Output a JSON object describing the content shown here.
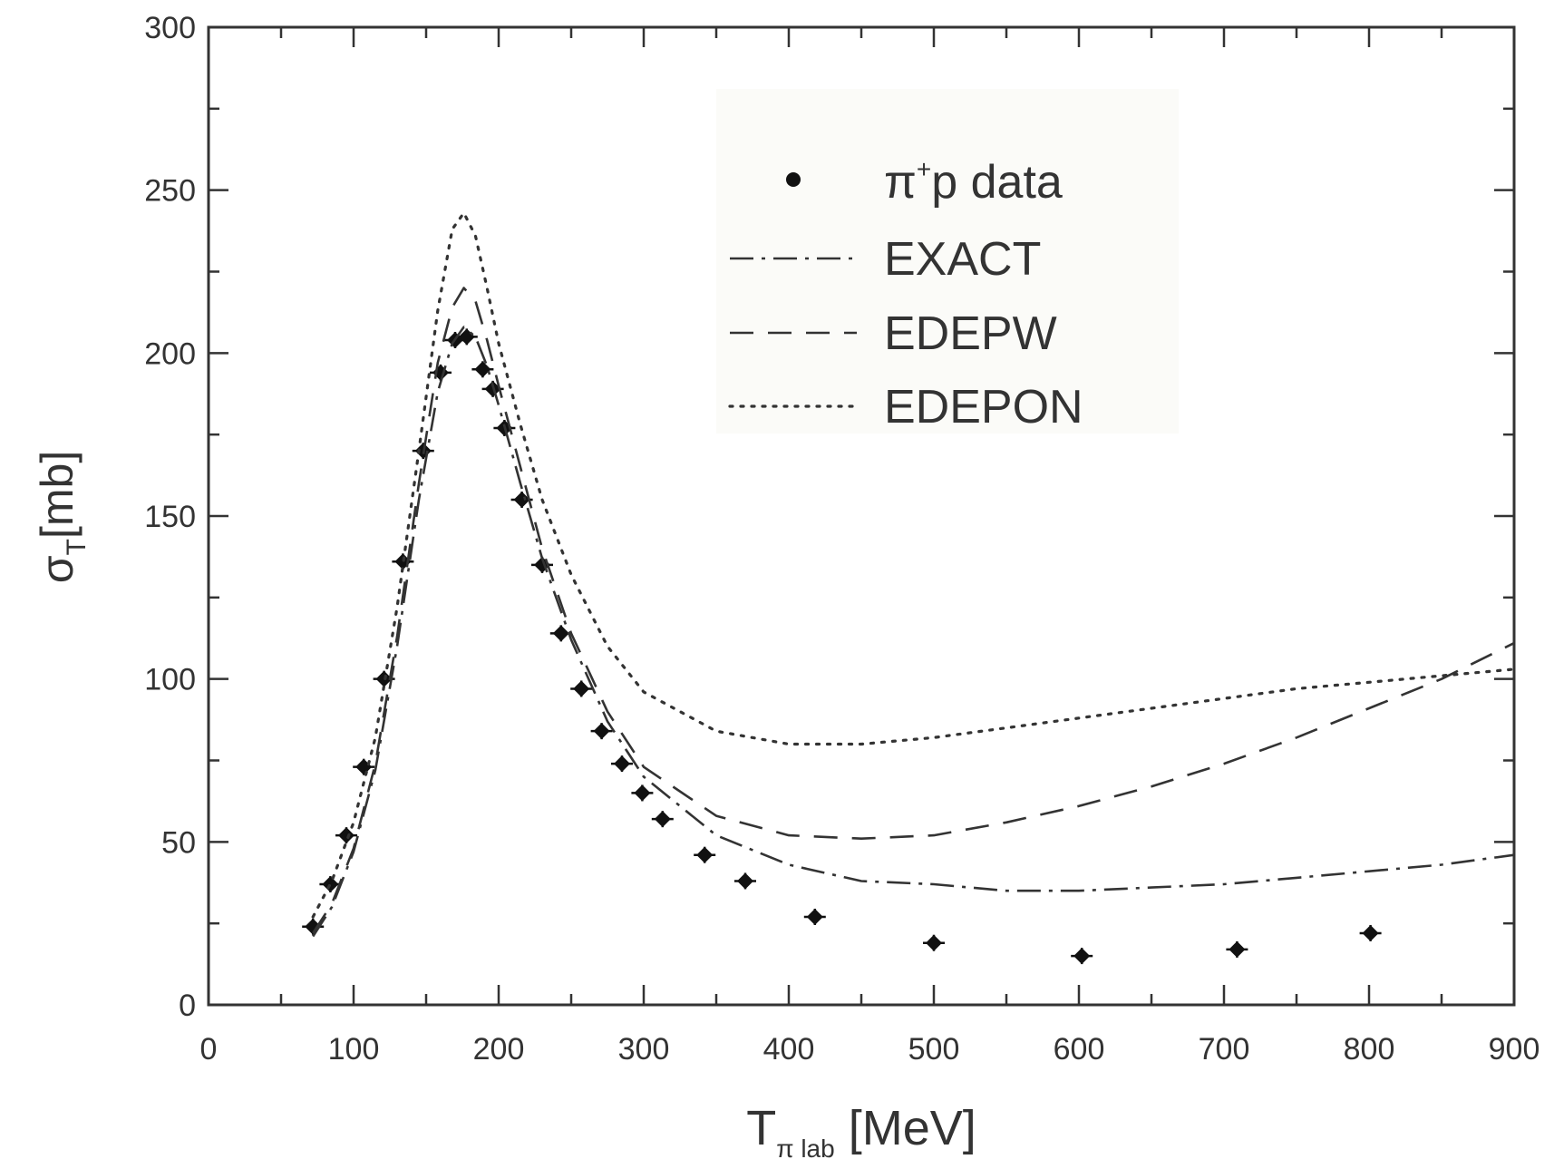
{
  "chart_data": {
    "type": "scatter",
    "title": "",
    "xlabel": {
      "main": "T",
      "sub": "π lab",
      "unit": " [MeV]"
    },
    "ylabel": {
      "main": "σ",
      "sub": "T",
      "unit": "[mb]"
    },
    "xlim": [
      0,
      900
    ],
    "ylim": [
      0,
      300
    ],
    "x_ticks": [
      0,
      100,
      200,
      300,
      400,
      500,
      600,
      700,
      800,
      900
    ],
    "y_ticks": [
      0,
      50,
      100,
      150,
      200,
      250,
      300
    ],
    "x_tick_labels": [
      "0",
      "100",
      "200",
      "300",
      "400",
      "500",
      "600",
      "700",
      "800",
      "900"
    ],
    "y_tick_labels": [
      "0",
      "50",
      "100",
      "150",
      "200",
      "250",
      "300"
    ],
    "x_minor_step": 50,
    "y_minor_step": 25,
    "grid": false,
    "legend_position": "top-right",
    "series": [
      {
        "name": "π⁺p data",
        "legend": {
          "pi": "π",
          "sup": "+",
          "rest": "p data"
        },
        "style": "points",
        "color": "#111111",
        "points": [
          [
            72,
            24
          ],
          [
            84,
            37
          ],
          [
            95,
            52
          ],
          [
            107,
            73
          ],
          [
            121,
            100
          ],
          [
            134,
            136
          ],
          [
            148,
            170
          ],
          [
            160,
            194
          ],
          [
            170,
            204
          ],
          [
            178,
            205
          ],
          [
            189,
            195
          ],
          [
            196,
            189
          ],
          [
            204,
            177
          ],
          [
            216,
            155
          ],
          [
            230,
            135
          ],
          [
            243,
            114
          ],
          [
            257,
            97
          ],
          [
            271,
            84
          ],
          [
            285,
            74
          ],
          [
            299,
            65
          ],
          [
            313,
            57
          ],
          [
            342,
            46
          ],
          [
            370,
            38
          ],
          [
            418,
            27
          ],
          [
            500,
            19
          ],
          [
            602,
            15
          ],
          [
            709,
            17
          ],
          [
            801,
            22
          ]
        ]
      },
      {
        "name": "EXACT",
        "style": "dashdot",
        "color": "#333333",
        "points": [
          [
            72,
            21
          ],
          [
            85,
            30
          ],
          [
            100,
            47
          ],
          [
            115,
            72
          ],
          [
            130,
            110
          ],
          [
            145,
            155
          ],
          [
            158,
            188
          ],
          [
            168,
            203
          ],
          [
            176,
            208
          ],
          [
            184,
            205
          ],
          [
            192,
            196
          ],
          [
            200,
            184
          ],
          [
            215,
            160
          ],
          [
            230,
            137
          ],
          [
            250,
            112
          ],
          [
            275,
            87
          ],
          [
            300,
            70
          ],
          [
            350,
            52
          ],
          [
            400,
            43
          ],
          [
            450,
            38
          ],
          [
            500,
            37
          ],
          [
            550,
            35
          ],
          [
            600,
            35
          ],
          [
            650,
            36
          ],
          [
            700,
            37
          ],
          [
            750,
            39
          ],
          [
            800,
            41
          ],
          [
            850,
            43
          ],
          [
            900,
            46
          ]
        ]
      },
      {
        "name": "EDEPW",
        "style": "dashed",
        "color": "#333333",
        "points": [
          [
            72,
            22
          ],
          [
            85,
            31
          ],
          [
            100,
            48
          ],
          [
            115,
            74
          ],
          [
            130,
            113
          ],
          [
            145,
            160
          ],
          [
            158,
            197
          ],
          [
            168,
            214
          ],
          [
            176,
            220
          ],
          [
            184,
            216
          ],
          [
            192,
            204
          ],
          [
            200,
            190
          ],
          [
            215,
            165
          ],
          [
            230,
            140
          ],
          [
            250,
            114
          ],
          [
            275,
            90
          ],
          [
            300,
            73
          ],
          [
            350,
            58
          ],
          [
            400,
            52
          ],
          [
            450,
            51
          ],
          [
            500,
            52
          ],
          [
            550,
            56
          ],
          [
            600,
            61
          ],
          [
            650,
            67
          ],
          [
            700,
            74
          ],
          [
            750,
            82
          ],
          [
            800,
            91
          ],
          [
            850,
            100
          ],
          [
            900,
            111
          ]
        ]
      },
      {
        "name": "EDEPON",
        "style": "dotted",
        "color": "#333333",
        "points": [
          [
            72,
            27
          ],
          [
            85,
            38
          ],
          [
            100,
            56
          ],
          [
            115,
            82
          ],
          [
            130,
            122
          ],
          [
            145,
            170
          ],
          [
            158,
            213
          ],
          [
            168,
            238
          ],
          [
            176,
            243
          ],
          [
            184,
            236
          ],
          [
            192,
            220
          ],
          [
            200,
            203
          ],
          [
            215,
            178
          ],
          [
            230,
            155
          ],
          [
            250,
            132
          ],
          [
            275,
            110
          ],
          [
            300,
            96
          ],
          [
            350,
            84
          ],
          [
            400,
            80
          ],
          [
            450,
            80
          ],
          [
            500,
            82
          ],
          [
            550,
            85
          ],
          [
            600,
            88
          ],
          [
            650,
            91
          ],
          [
            700,
            94
          ],
          [
            750,
            97
          ],
          [
            800,
            99
          ],
          [
            850,
            101
          ],
          [
            900,
            103
          ]
        ]
      }
    ]
  }
}
